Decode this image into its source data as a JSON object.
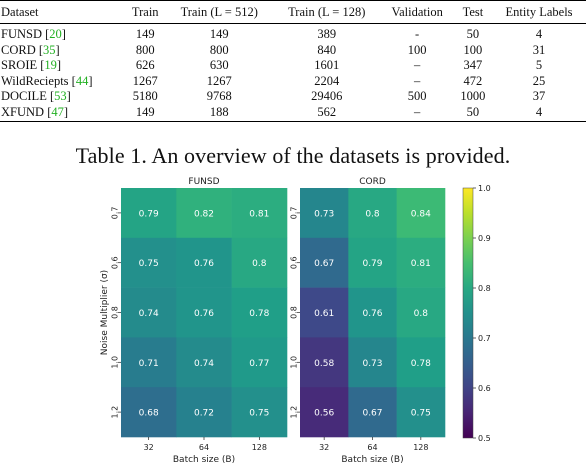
{
  "table": {
    "headers": [
      "Dataset",
      "Train",
      "Train (L = 512)",
      "Train (L = 128)",
      "Validation",
      "Test",
      "Entity Labels"
    ],
    "rows": [
      {
        "name": "FUNSD",
        "cite": "20",
        "cells": [
          "149",
          "149",
          "389",
          "-",
          "50",
          "4"
        ]
      },
      {
        "name": "CORD",
        "cite": "35",
        "cells": [
          "800",
          "800",
          "840",
          "100",
          "100",
          "31"
        ]
      },
      {
        "name": "SROIE",
        "cite": "19",
        "cells": [
          "626",
          "630",
          "1601",
          "–",
          "347",
          "5"
        ]
      },
      {
        "name": "WildReciepts",
        "cite": "44",
        "cells": [
          "1267",
          "1267",
          "2204",
          "–",
          "472",
          "25"
        ]
      },
      {
        "name": "DOCILE",
        "cite": "53",
        "cells": [
          "5180",
          "9768",
          "29406",
          "500",
          "1000",
          "37"
        ]
      },
      {
        "name": "XFUND",
        "cite": "47",
        "cells": [
          "149",
          "188",
          "562",
          "–",
          "50",
          "4"
        ]
      }
    ]
  },
  "caption": "Table 1. An overview of the datasets is provided.",
  "chart_data": [
    {
      "type": "heatmap",
      "title": "FUNSD",
      "xlabel": "Batch size (B)",
      "ylabel": "Noise Multiplier (σ)",
      "x": [
        "32",
        "64",
        "128"
      ],
      "y": [
        "0.7",
        "0.6",
        "0.8",
        "1.0",
        "1.2"
      ],
      "values": [
        [
          0.79,
          0.82,
          0.81
        ],
        [
          0.75,
          0.76,
          0.8
        ],
        [
          0.74,
          0.76,
          0.78
        ],
        [
          0.71,
          0.74,
          0.77
        ],
        [
          0.68,
          0.72,
          0.75
        ]
      ],
      "colorscale": "viridis",
      "vmin": 0.5,
      "vmax": 1.0
    },
    {
      "type": "heatmap",
      "title": "CORD",
      "xlabel": "Batch size (B)",
      "ylabel": "",
      "x": [
        "32",
        "64",
        "128"
      ],
      "y": [
        "0.7",
        "0.6",
        "0.8",
        "1.0",
        "1.2"
      ],
      "values": [
        [
          0.73,
          0.8,
          0.84
        ],
        [
          0.67,
          0.79,
          0.81
        ],
        [
          0.61,
          0.76,
          0.8
        ],
        [
          0.58,
          0.73,
          0.78
        ],
        [
          0.56,
          0.67,
          0.75
        ]
      ],
      "colorscale": "viridis",
      "vmin": 0.5,
      "vmax": 1.0
    }
  ],
  "colorbar": {
    "ticks": [
      "1.0",
      "0.9",
      "0.8",
      "0.7",
      "0.6",
      "0.5"
    ]
  }
}
